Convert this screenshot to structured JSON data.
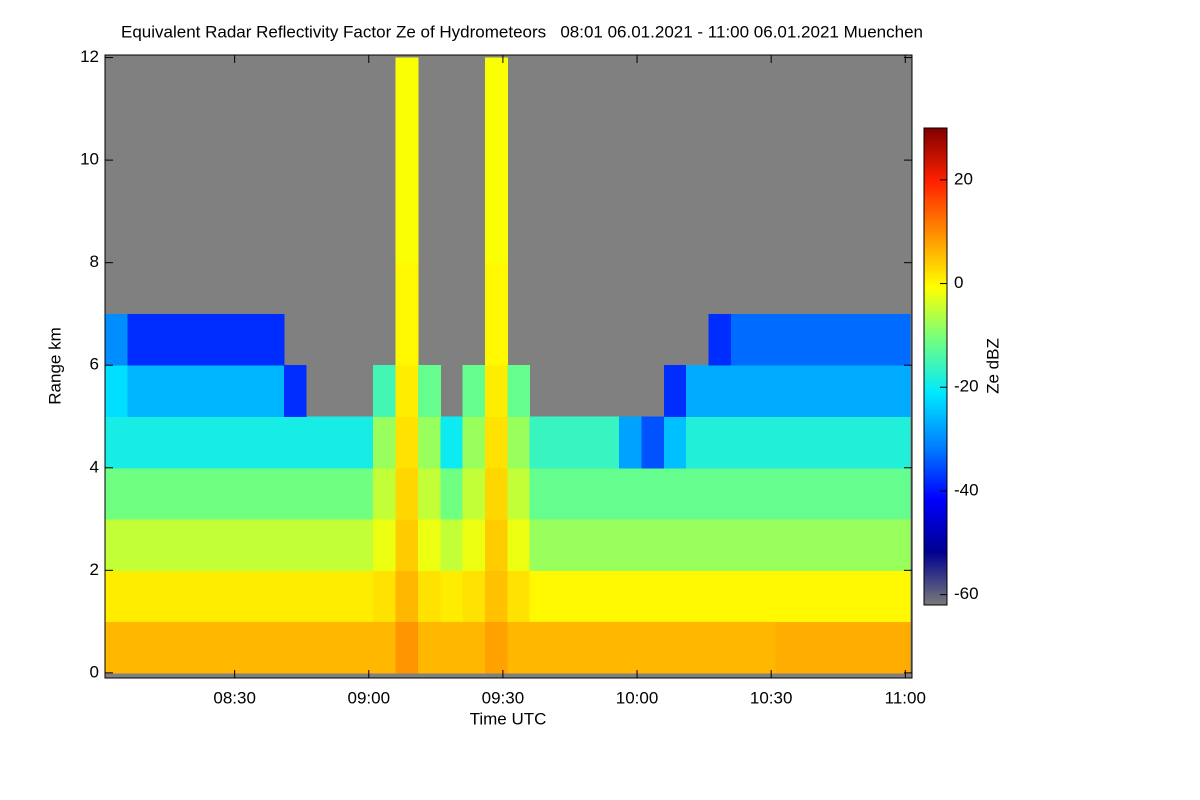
{
  "chart_data": {
    "type": "heatmap",
    "title": "Equivalent Radar Reflectivity Factor Ze of Hydrometeors   08:01 06.01.2021 - 11:00 06.01.2021 Muenchen",
    "x_label": "Time UTC",
    "y_label": "Range km",
    "colorbar_label": "Ze dBZ",
    "xlim": [
      8.0167,
      11.025
    ],
    "ylim": [
      -0.1,
      12.05
    ],
    "xticks": [
      {
        "value": 8.5,
        "label": "08:30"
      },
      {
        "value": 9,
        "label": "09:00"
      },
      {
        "value": 9.5,
        "label": "09:30"
      },
      {
        "value": 10,
        "label": "10:00"
      },
      {
        "value": 10.5,
        "label": "10:30"
      },
      {
        "value": 11,
        "label": "11:00"
      }
    ],
    "yticks": [
      0,
      2,
      4,
      6,
      8,
      10,
      12
    ],
    "clim": [
      -62,
      30
    ],
    "cticks": [
      -60,
      -40,
      -20,
      0,
      20
    ],
    "colormap": [
      "#7a7a7a",
      "#00008f",
      "#0000ff",
      "#0080ff",
      "#00e8ff",
      "#70ff80",
      "#ffff00",
      "#ff9000",
      "#ff2000",
      "#800000"
    ],
    "missing_color": "#808080",
    "x": [
      8.0583,
      8.1417,
      8.225,
      8.3083,
      8.3917,
      8.475,
      8.5583,
      8.6417,
      8.725,
      8.8083,
      8.8917,
      8.975,
      9.0583,
      9.1417,
      9.225,
      9.3083,
      9.3917,
      9.475,
      9.5583,
      9.6417,
      9.725,
      9.8083,
      9.8917,
      9.975,
      10.0583,
      10.1417,
      10.225,
      10.3083,
      10.3917,
      10.475,
      10.5583,
      10.6417,
      10.725,
      10.8083,
      10.8917,
      10.975
    ],
    "y": [
      0.5,
      1.5,
      2.5,
      3.5,
      4.5,
      5.5,
      6.5,
      7.5,
      8.5,
      9.5,
      10.5,
      11.5
    ],
    "z": [
      [
        6,
        6,
        6,
        6,
        6,
        6,
        6,
        6,
        6,
        6,
        6,
        6,
        6,
        9,
        6,
        6,
        6,
        8,
        6,
        6,
        6,
        6,
        6,
        6,
        6,
        6,
        6,
        6,
        6,
        6,
        7,
        7,
        7,
        7,
        7,
        7
      ],
      [
        1,
        1,
        1,
        1,
        1,
        1,
        1,
        1,
        1,
        1,
        1,
        1,
        2,
        6,
        2,
        1,
        2,
        5,
        2,
        0,
        0,
        0,
        0,
        0,
        0,
        0,
        0,
        0,
        0,
        0,
        0,
        0,
        0,
        0,
        0,
        0
      ],
      [
        -5,
        -5,
        -5,
        -5,
        -5,
        -5,
        -5,
        -5,
        -5,
        -5,
        -5,
        -5,
        -2,
        4,
        -2,
        -5,
        -2,
        4,
        -2,
        -8,
        -8,
        -8,
        -8,
        -8,
        -8,
        -8,
        -8,
        -8,
        -8,
        -8,
        -8,
        -8,
        -8,
        -8,
        -8,
        -8
      ],
      [
        -11,
        -11,
        -11,
        -11,
        -11,
        -11,
        -11,
        -11,
        -11,
        -11,
        -11,
        -11,
        -5,
        3,
        -5,
        -11,
        -5,
        3,
        -5,
        -12,
        -12,
        -12,
        -12,
        -12,
        -12,
        -12,
        -12,
        -12,
        -12,
        -12,
        -12,
        -12,
        -12,
        -12,
        -12,
        -12
      ],
      [
        -19,
        -19,
        -19,
        -19,
        -19,
        -19,
        -19,
        -19,
        -19,
        -19,
        -19,
        -19,
        -8,
        2,
        -8,
        -20,
        -8,
        2,
        -8,
        -16,
        -16,
        -16,
        -16,
        -28,
        -35,
        -25,
        -18,
        -18,
        -18,
        -18,
        -18,
        -18,
        -18,
        -18,
        -18,
        -18
      ],
      [
        -22,
        -26,
        -26,
        -26,
        -26,
        -26,
        -26,
        -26,
        -38,
        null,
        null,
        null,
        -15,
        1,
        -12,
        null,
        -12,
        1,
        -12,
        null,
        null,
        null,
        null,
        null,
        null,
        -38,
        -27,
        -27,
        -27,
        -27,
        -27,
        -27,
        -27,
        -27,
        -27,
        -27
      ],
      [
        -30,
        -38,
        -38,
        -38,
        -38,
        -38,
        -38,
        -38,
        null,
        null,
        null,
        null,
        null,
        0,
        null,
        null,
        null,
        0,
        null,
        null,
        null,
        null,
        null,
        null,
        null,
        null,
        null,
        -38,
        -33,
        -33,
        -33,
        -33,
        -33,
        -33,
        -33,
        -33
      ],
      [
        null,
        null,
        null,
        null,
        null,
        null,
        null,
        null,
        null,
        null,
        null,
        null,
        null,
        0,
        null,
        null,
        null,
        0,
        null,
        null,
        null,
        null,
        null,
        null,
        null,
        null,
        null,
        null,
        null,
        null,
        null,
        null,
        null,
        null,
        null,
        null
      ],
      [
        null,
        null,
        null,
        null,
        null,
        null,
        null,
        null,
        null,
        null,
        null,
        null,
        null,
        -1,
        null,
        null,
        null,
        -1,
        null,
        null,
        null,
        null,
        null,
        null,
        null,
        null,
        null,
        null,
        null,
        null,
        null,
        null,
        null,
        null,
        null,
        null
      ],
      [
        null,
        null,
        null,
        null,
        null,
        null,
        null,
        null,
        null,
        null,
        null,
        null,
        null,
        -1,
        null,
        null,
        null,
        -1,
        null,
        null,
        null,
        null,
        null,
        null,
        null,
        null,
        null,
        null,
        null,
        null,
        null,
        null,
        null,
        null,
        null,
        null
      ],
      [
        null,
        null,
        null,
        null,
        null,
        null,
        null,
        null,
        null,
        null,
        null,
        null,
        null,
        -1,
        null,
        null,
        null,
        -1,
        null,
        null,
        null,
        null,
        null,
        null,
        null,
        null,
        null,
        null,
        null,
        null,
        null,
        null,
        null,
        null,
        null,
        null
      ],
      [
        null,
        null,
        null,
        null,
        null,
        null,
        null,
        null,
        null,
        null,
        null,
        null,
        null,
        -1,
        null,
        null,
        null,
        -1,
        null,
        null,
        null,
        null,
        null,
        null,
        null,
        null,
        null,
        null,
        null,
        null,
        null,
        null,
        null,
        null,
        null,
        null
      ]
    ]
  }
}
